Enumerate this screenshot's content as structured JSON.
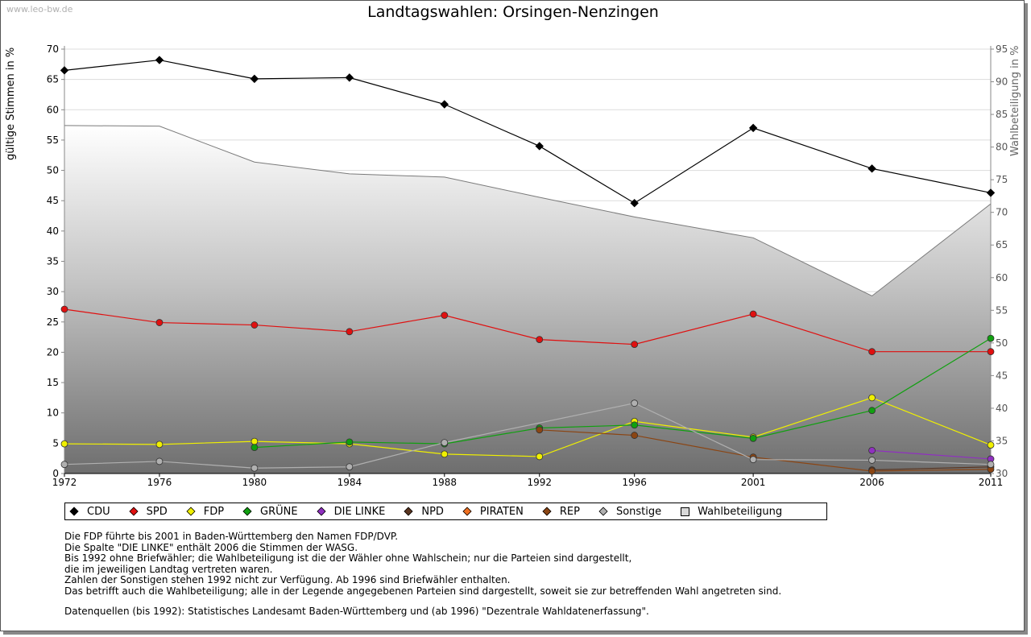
{
  "site": "www.leo-bw.de",
  "chart_data": {
    "type": "line",
    "title": "Landtagswahlen: Orsingen-Nenzingen",
    "ylabel": "gültige Stimmen in %",
    "ylabel_right": "Wahlbeteiligung in %",
    "x": [
      "1972",
      "1976",
      "1980",
      "1984",
      "1988",
      "1992",
      "1996",
      "2001",
      "2006",
      "2011"
    ],
    "x_numeric": [
      1972,
      1976,
      1980,
      1984,
      1988,
      1992,
      1996,
      2001,
      2006,
      2011
    ],
    "ylim": [
      0,
      70
    ],
    "yticks": [
      0,
      5,
      10,
      15,
      20,
      25,
      30,
      35,
      40,
      45,
      50,
      55,
      60,
      65,
      70
    ],
    "ylim_right": [
      30,
      95
    ],
    "yticks_right": [
      30,
      35,
      40,
      45,
      50,
      55,
      60,
      65,
      70,
      75,
      80,
      85,
      90,
      95
    ],
    "grid": true,
    "legend_position": "bottom",
    "series": [
      {
        "name": "CDU",
        "color": "#000000",
        "values": [
          66.5,
          68.2,
          65.1,
          65.3,
          60.9,
          54.0,
          44.6,
          57.0,
          50.3,
          46.3
        ]
      },
      {
        "name": "SPD",
        "color": "#e01010",
        "values": [
          27.1,
          24.9,
          24.5,
          23.4,
          26.1,
          22.1,
          21.3,
          26.3,
          20.1,
          20.1
        ]
      },
      {
        "name": "FDP",
        "color": "#f0f000",
        "values": [
          4.9,
          4.8,
          5.3,
          4.9,
          3.2,
          2.8,
          8.6,
          6.0,
          12.5,
          4.7
        ]
      },
      {
        "name": "GRÜNE",
        "color": "#10a010",
        "values": [
          null,
          null,
          4.3,
          5.2,
          4.9,
          7.5,
          8.0,
          5.8,
          10.4,
          22.3
        ]
      },
      {
        "name": "DIE LINKE",
        "color": "#9030c0",
        "values": [
          null,
          null,
          null,
          null,
          null,
          null,
          null,
          null,
          3.8,
          2.4
        ]
      },
      {
        "name": "NPD",
        "color": "#5a3520",
        "values": [
          null,
          null,
          null,
          null,
          null,
          null,
          null,
          null,
          0.6,
          1.1
        ]
      },
      {
        "name": "PIRATEN",
        "color": "#f07020",
        "values": [
          null,
          null,
          null,
          null,
          null,
          null,
          null,
          null,
          null,
          null
        ]
      },
      {
        "name": "REP",
        "color": "#8b4513",
        "values": [
          null,
          null,
          null,
          null,
          null,
          7.2,
          6.3,
          2.7,
          0.4,
          0.7
        ]
      },
      {
        "name": "Sonstige",
        "color": "#b0b0b0",
        "values": [
          1.5,
          2.0,
          0.9,
          1.1,
          5.1,
          null,
          11.6,
          2.3,
          2.2,
          1.5
        ]
      }
    ],
    "turnout": {
      "name": "Wahlbeteiligung",
      "color": "#d8d8d8",
      "axis": "right",
      "values": [
        83.3,
        83.2,
        77.7,
        75.9,
        75.4,
        72.3,
        69.3,
        66.1,
        57.2,
        71.3
      ]
    }
  },
  "legend": [
    "CDU",
    "SPD",
    "FDP",
    "GRÜNE",
    "DIE LINKE",
    "NPD",
    "PIRATEN",
    "REP",
    "Sonstige",
    "Wahlbeteiligung"
  ],
  "notes": [
    "Die FDP führte bis 2001 in Baden-Württemberg den Namen FDP/DVP.",
    "Die Spalte \"DIE LINKE\" enthält 2006 die Stimmen der WASG.",
    "Bis 1992 ohne Briefwähler; die Wahlbeteiligung ist die der Wähler ohne Wahlschein; nur die Parteien sind dargestellt,",
    "die im jeweiligen Landtag vertreten waren.",
    "Zahlen der Sonstigen stehen 1992 nicht zur Verfügung. Ab 1996 sind Briefwähler enthalten.",
    "Das betrifft auch die Wahlbeteiligung; alle in der Legende angegebenen Parteien sind dargestellt, soweit sie zur betreffenden Wahl angetreten sind."
  ],
  "source": "Datenquellen (bis 1992): Statistisches Landesamt Baden-Württemberg und (ab 1996) \"Dezentrale Wahldatenerfassung\"."
}
